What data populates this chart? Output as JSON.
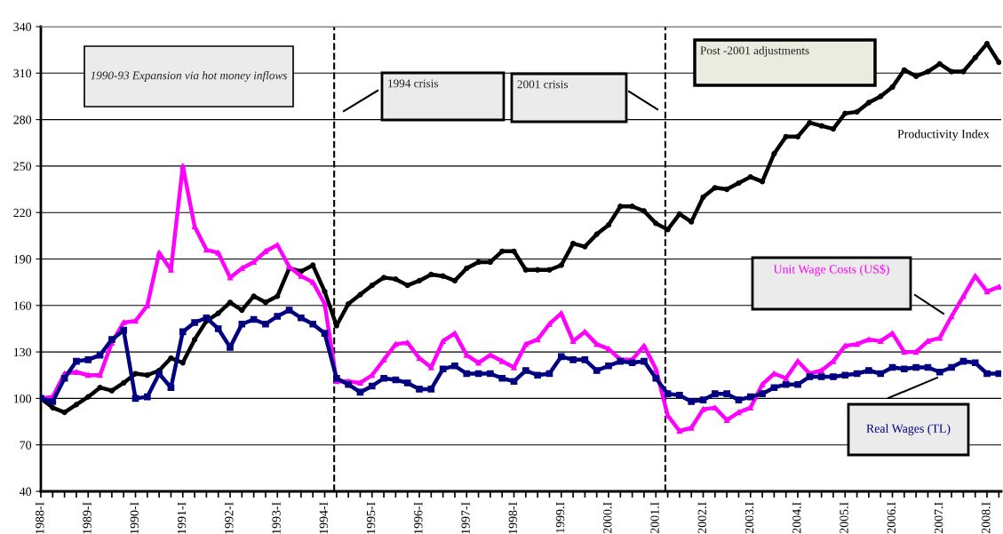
{
  "chart_data": {
    "type": "line",
    "x": [
      1988,
      1988.25,
      1988.5,
      1988.75,
      1989,
      1989.25,
      1989.5,
      1989.75,
      1990,
      1990.25,
      1990.5,
      1990.75,
      1991,
      1991.25,
      1991.5,
      1991.75,
      1992,
      1992.25,
      1992.5,
      1992.75,
      1993,
      1993.25,
      1993.5,
      1993.75,
      1994,
      1994.25,
      1994.5,
      1994.75,
      1995,
      1995.25,
      1995.5,
      1995.75,
      1996,
      1996.25,
      1996.5,
      1996.75,
      1997,
      1997.25,
      1997.5,
      1997.75,
      1998,
      1998.25,
      1998.5,
      1998.75,
      1999,
      1999.25,
      1999.5,
      1999.75,
      2000,
      2000.25,
      2000.5,
      2000.75,
      2001,
      2001.25,
      2001.5,
      2001.75,
      2002,
      2002.25,
      2002.5,
      2002.75,
      2003,
      2003.25,
      2003.5,
      2003.75,
      2004,
      2004.25,
      2004.5,
      2004.75,
      2005,
      2005.25,
      2005.5,
      2005.75,
      2006,
      2006.25,
      2006.5,
      2006.75,
      2007,
      2007.25,
      2007.5,
      2007.75,
      2008,
      2008.25
    ],
    "series": [
      {
        "name": "Productivity Index",
        "color": "#000000",
        "marker": "circle",
        "values": [
          100,
          94,
          91,
          96,
          101,
          107,
          105,
          110,
          116,
          115,
          118,
          126,
          123,
          138,
          150,
          155,
          162,
          157,
          166,
          162,
          166,
          184,
          182,
          186,
          169,
          147,
          161,
          167,
          173,
          178,
          177,
          173,
          176,
          180,
          179,
          176,
          184,
          188,
          188,
          195,
          195,
          183,
          183,
          183,
          186,
          200,
          198,
          206,
          212,
          224,
          224,
          221,
          213,
          209,
          219,
          214,
          230,
          236,
          235,
          239,
          243,
          240,
          258,
          269,
          269,
          278,
          276,
          274,
          284,
          285,
          291,
          295,
          301,
          312,
          308,
          311,
          316,
          311,
          311,
          320,
          329,
          317
        ]
      },
      {
        "name": "Unit Wage Costs (US$)",
        "color": "#ff00ff",
        "marker": "triangle",
        "values": [
          100,
          101,
          116,
          117,
          115,
          115,
          136,
          149,
          150,
          160,
          194,
          183,
          250,
          211,
          196,
          194,
          178,
          184,
          188,
          195,
          199,
          185,
          179,
          175,
          161,
          111,
          111,
          110,
          115,
          125,
          135,
          136,
          126,
          120,
          137,
          142,
          128,
          123,
          128,
          124,
          120,
          135,
          138,
          148,
          155,
          137,
          143,
          135,
          132,
          125,
          125,
          134,
          119,
          89,
          79,
          81,
          93,
          94,
          86,
          91,
          94,
          109,
          116,
          113,
          124,
          116,
          118,
          124,
          134,
          135,
          138,
          137,
          142,
          130,
          130,
          137,
          139,
          153,
          166,
          179,
          169,
          172
        ]
      },
      {
        "name": "Real Wages (TL)",
        "color": "#000080",
        "marker": "square",
        "values": [
          100,
          98,
          113,
          124,
          125,
          128,
          138,
          144,
          100,
          101,
          116,
          107,
          143,
          149,
          152,
          145,
          133,
          148,
          151,
          148,
          153,
          157,
          152,
          148,
          142,
          113,
          109,
          104,
          108,
          113,
          112,
          110,
          106,
          106,
          119,
          121,
          116,
          116,
          116,
          113,
          111,
          118,
          115,
          116,
          127,
          125,
          125,
          118,
          121,
          124,
          123,
          124,
          113,
          103,
          102,
          98,
          99,
          103,
          103,
          99,
          101,
          103,
          107,
          109,
          109,
          114,
          114,
          114,
          115,
          116,
          118,
          116,
          120,
          119,
          120,
          120,
          117,
          120,
          124,
          123,
          116,
          116
        ]
      }
    ],
    "ylim": [
      40,
      340
    ],
    "yticks": [
      40,
      70,
      100,
      130,
      160,
      190,
      220,
      250,
      280,
      310,
      340
    ],
    "xlim": [
      1988,
      2008.3
    ],
    "xticks": [
      {
        "value": 1988,
        "label": "1988-I"
      },
      {
        "value": 1988.25,
        "label": null
      },
      {
        "value": 1988.5,
        "label": null
      },
      {
        "value": 1988.75,
        "label": null
      },
      {
        "value": 1989,
        "label": "1989-I"
      },
      {
        "value": 1989.25,
        "label": null
      },
      {
        "value": 1989.5,
        "label": null
      },
      {
        "value": 1989.75,
        "label": null
      },
      {
        "value": 1990,
        "label": "1990-I"
      },
      {
        "value": 1990.25,
        "label": null
      },
      {
        "value": 1990.5,
        "label": null
      },
      {
        "value": 1990.75,
        "label": null
      },
      {
        "value": 1991,
        "label": "1991-I"
      },
      {
        "value": 1991.25,
        "label": null
      },
      {
        "value": 1991.5,
        "label": null
      },
      {
        "value": 1991.75,
        "label": null
      },
      {
        "value": 1992,
        "label": "1992-I"
      },
      {
        "value": 1992.25,
        "label": null
      },
      {
        "value": 1992.5,
        "label": null
      },
      {
        "value": 1992.75,
        "label": null
      },
      {
        "value": 1993,
        "label": "1993-I"
      },
      {
        "value": 1993.25,
        "label": null
      },
      {
        "value": 1993.5,
        "label": null
      },
      {
        "value": 1993.75,
        "label": null
      },
      {
        "value": 1994,
        "label": "1994-I"
      },
      {
        "value": 1994.25,
        "label": null
      },
      {
        "value": 1994.5,
        "label": null
      },
      {
        "value": 1994.75,
        "label": null
      },
      {
        "value": 1995,
        "label": "1995-I"
      },
      {
        "value": 1995.25,
        "label": null
      },
      {
        "value": 1995.5,
        "label": null
      },
      {
        "value": 1995.75,
        "label": null
      },
      {
        "value": 1996,
        "label": "1996-I"
      },
      {
        "value": 1996.25,
        "label": null
      },
      {
        "value": 1996.5,
        "label": null
      },
      {
        "value": 1996.75,
        "label": null
      },
      {
        "value": 1997,
        "label": "1997-I"
      },
      {
        "value": 1997.25,
        "label": null
      },
      {
        "value": 1997.5,
        "label": null
      },
      {
        "value": 1997.75,
        "label": null
      },
      {
        "value": 1998,
        "label": "1998-I"
      },
      {
        "value": 1998.25,
        "label": null
      },
      {
        "value": 1998.5,
        "label": null
      },
      {
        "value": 1998.75,
        "label": null
      },
      {
        "value": 1999,
        "label": "1999.I"
      },
      {
        "value": 1999.25,
        "label": null
      },
      {
        "value": 1999.5,
        "label": null
      },
      {
        "value": 1999.75,
        "label": null
      },
      {
        "value": 2000,
        "label": "2000.I"
      },
      {
        "value": 2000.25,
        "label": null
      },
      {
        "value": 2000.5,
        "label": null
      },
      {
        "value": 2000.75,
        "label": null
      },
      {
        "value": 2001,
        "label": "2001.I"
      },
      {
        "value": 2001.25,
        "label": null
      },
      {
        "value": 2001.5,
        "label": null
      },
      {
        "value": 2001.75,
        "label": null
      },
      {
        "value": 2002,
        "label": "2002.I"
      },
      {
        "value": 2002.25,
        "label": null
      },
      {
        "value": 2002.5,
        "label": null
      },
      {
        "value": 2002.75,
        "label": null
      },
      {
        "value": 2003,
        "label": "2003.I"
      },
      {
        "value": 2003.25,
        "label": null
      },
      {
        "value": 2003.5,
        "label": null
      },
      {
        "value": 2003.75,
        "label": null
      },
      {
        "value": 2004,
        "label": "2004.I"
      },
      {
        "value": 2004.25,
        "label": null
      },
      {
        "value": 2004.5,
        "label": null
      },
      {
        "value": 2004.75,
        "label": null
      },
      {
        "value": 2005,
        "label": "2005.I"
      },
      {
        "value": 2005.25,
        "label": null
      },
      {
        "value": 2005.5,
        "label": null
      },
      {
        "value": 2005.75,
        "label": null
      },
      {
        "value": 2006,
        "label": "2006.I"
      },
      {
        "value": 2006.25,
        "label": null
      },
      {
        "value": 2006.5,
        "label": null
      },
      {
        "value": 2006.75,
        "label": null
      },
      {
        "value": 2007,
        "label": "2007.I"
      },
      {
        "value": 2007.25,
        "label": null
      },
      {
        "value": 2007.5,
        "label": null
      },
      {
        "value": 2007.75,
        "label": null
      },
      {
        "value": 2008,
        "label": "2008.I"
      },
      {
        "value": 2008.25,
        "label": null
      }
    ],
    "ref_lines": [
      {
        "axis": "x",
        "value": 1994.2,
        "color": "#000000",
        "line_style": "dashed"
      },
      {
        "axis": "x",
        "value": 2001.2,
        "color": "#000000",
        "line_style": "dashed"
      }
    ],
    "annotations": [
      "1990-93 Expansion via hot money inflows",
      "1994 crisis",
      "2001 crisis",
      "Post -2001 adjustments"
    ],
    "grid": "y",
    "legend": false,
    "line_style": "solid"
  }
}
